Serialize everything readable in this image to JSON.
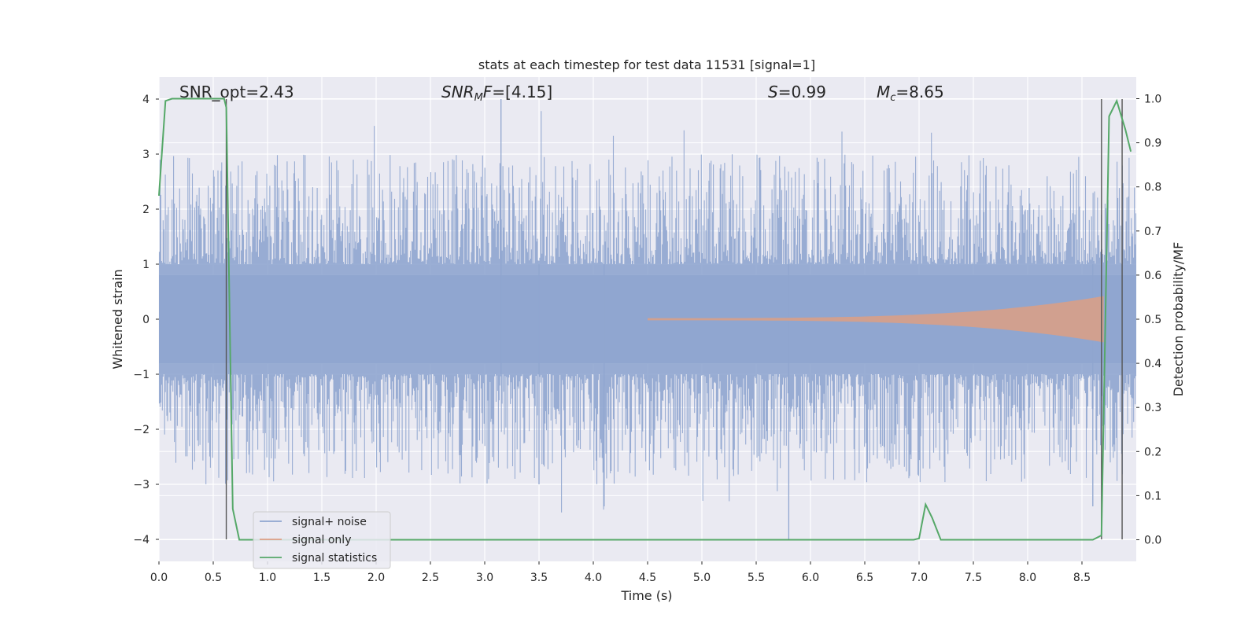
{
  "chart_data": {
    "type": "line",
    "title": "stats at each timestep for test data 11531 [signal=1]",
    "xlabel": "Time (s)",
    "ylabel": "Whitened strain",
    "y2label": "Detection probability/MF",
    "xlim": [
      0.0,
      9.0
    ],
    "ylim": [
      -4.2,
      4.2
    ],
    "y2lim": [
      -0.048,
      1.048
    ],
    "xticks": [
      "0.0",
      "0.5",
      "1.0",
      "1.5",
      "2.0",
      "2.5",
      "3.0",
      "3.5",
      "4.0",
      "4.5",
      "5.0",
      "5.5",
      "6.0",
      "6.5",
      "7.0",
      "7.5",
      "8.0",
      "8.5"
    ],
    "yticks": [
      "4",
      "3",
      "2",
      "1",
      "0",
      "−1",
      "−2",
      "−3",
      "−4"
    ],
    "y2ticks": [
      "1.0",
      "0.9",
      "0.8",
      "0.7",
      "0.6",
      "0.5",
      "0.4",
      "0.3",
      "0.2",
      "0.1",
      "0.0"
    ],
    "grid": true,
    "legend_position": "lower-left",
    "annotations": {
      "snr_opt": "SNR_opt=2.43",
      "snr_mf": "=[4.15]",
      "s_stat": "=0.99",
      "mchirp": "=8.65"
    },
    "series": [
      {
        "name": "signal+ noise",
        "color": "#8fa5cf",
        "description_range": [
          -4.0,
          4.0
        ]
      },
      {
        "name": "signal only",
        "color": "#dd9f84",
        "envelope_max": 0.4,
        "start": 4.5,
        "end": 8.7
      },
      {
        "name": "signal statistics",
        "color": "#55a868",
        "x": [
          0.0,
          0.06,
          0.12,
          0.2,
          0.3,
          0.4,
          0.5,
          0.55,
          0.6,
          0.62,
          0.68,
          0.74,
          0.8,
          1.0,
          6.5,
          6.95,
          7.0,
          7.06,
          7.12,
          7.2,
          7.5,
          8.0,
          8.6,
          8.68,
          8.75,
          8.82,
          8.9,
          8.95
        ],
        "y": [
          0.78,
          0.995,
          1.0,
          1.0,
          1.0,
          1.0,
          1.0,
          1.0,
          1.0,
          0.98,
          0.07,
          0.0,
          0.0,
          0.0,
          0.0,
          0.0,
          0.003,
          0.08,
          0.05,
          0.0,
          0.0,
          0.0,
          0.0,
          0.01,
          0.96,
          0.995,
          0.93,
          0.88
        ]
      }
    ],
    "vlines_x": [
      0.62,
      8.68,
      8.87
    ]
  }
}
